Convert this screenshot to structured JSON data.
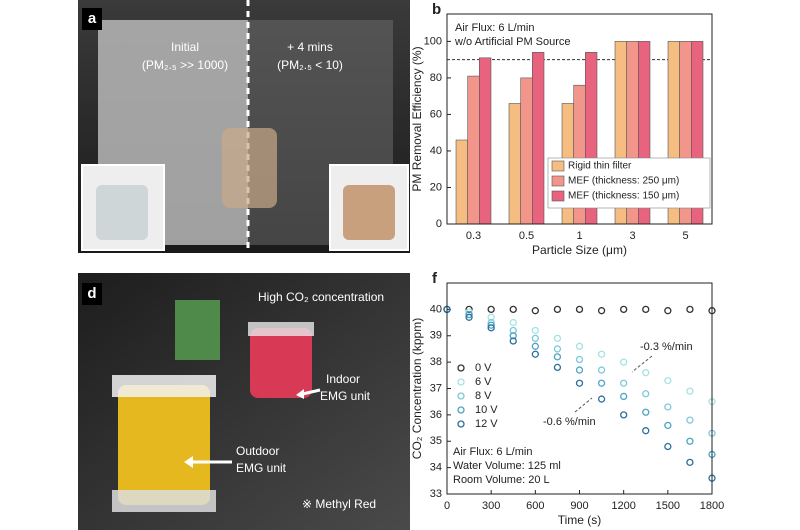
{
  "panels": {
    "a": {
      "label": "a",
      "texts": [
        "Initial",
        "(PM₂.₅ >> 1000)",
        "+ 4 mins",
        "(PM₂.₅ < 10)"
      ]
    },
    "d": {
      "label": "d",
      "texts": [
        "High CO₂ concentration",
        "Indoor",
        "EMG unit",
        "Outdoor",
        "EMG unit",
        "※ Methyl Red"
      ]
    }
  },
  "chart_data": [
    {
      "type": "bar",
      "label": "b",
      "annotations": [
        "Air Flux: 6 L/min",
        "w/o Artificial PM Source"
      ],
      "x_label": "Particle Size (μm)",
      "y_label": "PM Removal Efficiency (%)",
      "categories": [
        "0.3",
        "0.5",
        "1",
        "3",
        "5"
      ],
      "series": [
        {
          "name": "Rigid thin filter",
          "color": "#f6bd82",
          "values": [
            46,
            66,
            66,
            100,
            100
          ]
        },
        {
          "name": "MEF (thickness: 250 μm)",
          "color": "#f2958a",
          "values": [
            81,
            80,
            76,
            100,
            100
          ]
        },
        {
          "name": "MEF (thickness: 150 μm)",
          "color": "#e8637d",
          "values": [
            91,
            94,
            94,
            100,
            100
          ]
        }
      ],
      "reference_line": 90,
      "ylim": [
        0,
        115
      ],
      "yticks": [
        0,
        20,
        40,
        60,
        80,
        100
      ],
      "legend": "lower right"
    },
    {
      "type": "line",
      "label": "f",
      "annotations": [
        "-0.3 %/min",
        "-0.6 %/min",
        "Air Flux: 6 L/min",
        "Water Volume: 125 ml",
        "Room Volume: 20 L"
      ],
      "x_label": "Time (s)",
      "y_label": "CO₂ Concentration (kppm)",
      "x": [
        0,
        150,
        300,
        450,
        600,
        750,
        900,
        1050,
        1200,
        1350,
        1500,
        1650,
        1800
      ],
      "series": [
        {
          "name": "0 V",
          "color": "#333333",
          "values": [
            40.0,
            40.0,
            40.0,
            40.0,
            39.95,
            40.0,
            40.0,
            39.95,
            40.0,
            40.0,
            39.95,
            40.0,
            39.95
          ]
        },
        {
          "name": "6 V",
          "color": "#a3e3e3",
          "values": [
            40.0,
            39.9,
            39.7,
            39.5,
            39.2,
            38.9,
            38.6,
            38.3,
            38.0,
            37.6,
            37.3,
            36.9,
            36.5
          ]
        },
        {
          "name": "8 V",
          "color": "#7cc9d9",
          "values": [
            40.0,
            39.8,
            39.5,
            39.2,
            38.9,
            38.5,
            38.1,
            37.7,
            37.2,
            36.8,
            36.3,
            35.8,
            35.3
          ]
        },
        {
          "name": "10 V",
          "color": "#4aa5c5",
          "values": [
            40.0,
            39.8,
            39.4,
            39.0,
            38.6,
            38.2,
            37.7,
            37.2,
            36.7,
            36.1,
            35.6,
            35.0,
            34.5
          ]
        },
        {
          "name": "12 V",
          "color": "#2c6e9c",
          "values": [
            40.0,
            39.7,
            39.3,
            38.8,
            38.3,
            37.8,
            37.2,
            36.6,
            36.0,
            35.4,
            34.8,
            34.2,
            33.6
          ]
        }
      ],
      "xlim": [
        0,
        1800
      ],
      "xticks": [
        0,
        300,
        600,
        900,
        1200,
        1500,
        1800
      ],
      "ylim": [
        33,
        41
      ],
      "yticks": [
        33,
        34,
        35,
        36,
        37,
        38,
        39,
        40
      ],
      "legend": "center left"
    }
  ]
}
